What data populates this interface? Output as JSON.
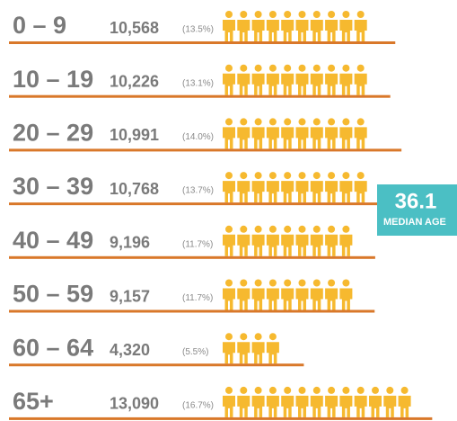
{
  "chart_data": {
    "type": "pictograph",
    "categories": [
      "0 – 9",
      "10 – 19",
      "20 – 29",
      "30 – 39",
      "40 – 49",
      "50 – 59",
      "60 – 64",
      "65+"
    ],
    "values": [
      10568,
      10226,
      10991,
      10768,
      9196,
      9157,
      4320,
      13090
    ],
    "value_labels": [
      "10,568",
      "10,226",
      "10,991",
      "10,768",
      "9,196",
      "9,157",
      "4,320",
      "13,090"
    ],
    "percents": [
      13.5,
      13.1,
      14.0,
      13.7,
      11.7,
      11.7,
      5.5,
      16.7
    ],
    "percent_labels": [
      "(13.5%)",
      "(13.1%)",
      "(14.0%)",
      "(13.7%)",
      "(11.7%)",
      "(11.7%)",
      "(5.5%)",
      "(16.7%)"
    ],
    "color": "#f6b92f",
    "line_color": "#d9782a",
    "median": {
      "value": 36.1,
      "label": "MEDIAN AGE",
      "color": "#4bbfc4"
    }
  }
}
